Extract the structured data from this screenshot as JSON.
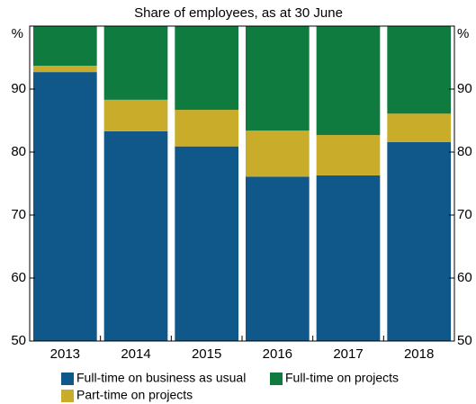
{
  "chart_data": {
    "type": "stacked_bar",
    "subtitle": "Share of employees, as at 30 June",
    "y_unit": "%",
    "categories": [
      "2013",
      "2014",
      "2015",
      "2016",
      "2017",
      "2018"
    ],
    "series": [
      {
        "name": "Full-time on business as usual",
        "color": "#10578a",
        "values": [
          92.7,
          83.3,
          80.9,
          76.1,
          76.3,
          81.6
        ]
      },
      {
        "name": "Part-time on projects",
        "color": "#c9ac2a",
        "values": [
          1.0,
          5.0,
          5.8,
          7.3,
          6.4,
          4.5
        ]
      },
      {
        "name": "Full-time on projects",
        "color": "#0f7b3e",
        "values": [
          6.3,
          11.7,
          13.3,
          16.6,
          17.3,
          13.9
        ]
      }
    ],
    "ylim": [
      50,
      100
    ],
    "yticks": [
      50,
      60,
      70,
      80,
      90
    ],
    "y2lim": [
      50,
      100
    ],
    "y2ticks": [
      50,
      60,
      70,
      80,
      90
    ]
  }
}
